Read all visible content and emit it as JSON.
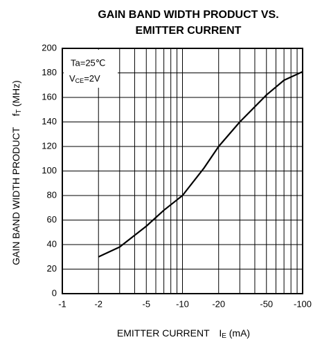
{
  "chart_data": {
    "type": "line",
    "title": [
      "GAIN BAND WIDTH PRODUCT VS.",
      "EMITTER CURRENT"
    ],
    "xlabel": {
      "main": "EMITTER CURRENT",
      "symbol": "I",
      "sub": "E",
      "unit": "(mA)"
    },
    "ylabel": {
      "main": "GAIN BAND WIDTH PRODUCT",
      "symbol": "f",
      "sub": "T",
      "unit": "(MHz)"
    },
    "annotations": [
      {
        "text": "Ta=25℃"
      },
      {
        "symbol": "V",
        "sub": "CE",
        "rest": "=2V"
      }
    ],
    "x": [
      -2,
      -3,
      -5,
      -7,
      -10,
      -15,
      -20,
      -30,
      -50,
      -70,
      -100
    ],
    "series": [
      {
        "color": "#000000",
        "values": [
          30,
          38,
          55,
          68,
          80,
          102,
          120,
          140,
          162,
          174,
          181
        ]
      }
    ],
    "xlim": [
      -1,
      -100
    ],
    "xscale": "log",
    "xticks": [
      -1,
      -2,
      -5,
      -10,
      -20,
      -50,
      -100
    ],
    "xminor_ticks": [
      -3,
      -4,
      -6,
      -7,
      -8,
      -9,
      -30,
      -40,
      -60,
      -70,
      -80,
      -90
    ],
    "ylim": [
      0,
      200
    ],
    "yticks": [
      0,
      20,
      40,
      60,
      80,
      100,
      120,
      140,
      160,
      180,
      200
    ],
    "grid": true
  }
}
